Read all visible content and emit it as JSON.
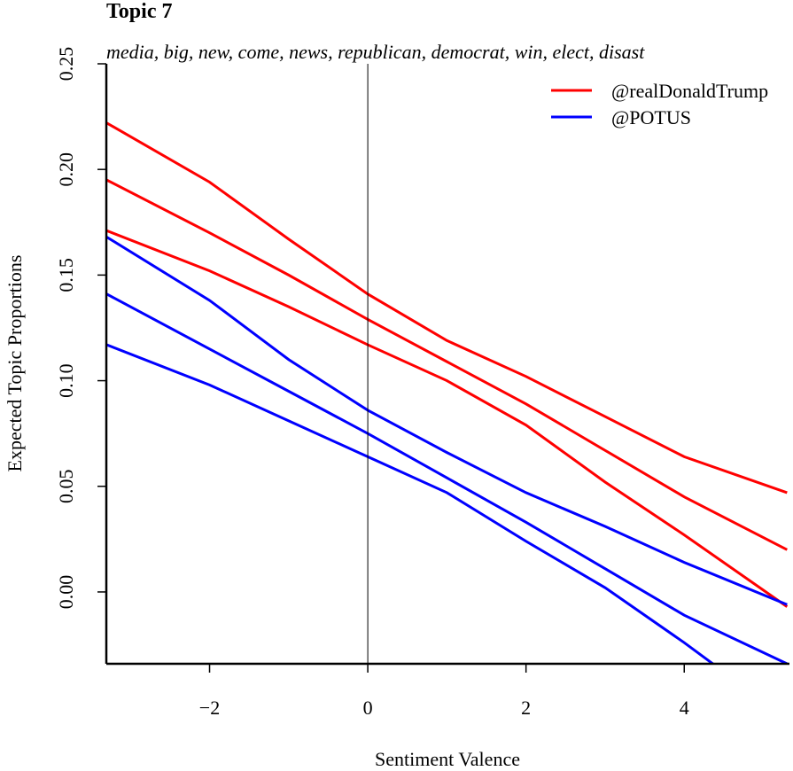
{
  "chart_data": {
    "type": "line",
    "title": "Topic 7",
    "subtitle": "media, big, new, come, news, republican, democrat, win, elect, disast",
    "xlabel": "Sentiment Valence",
    "ylabel": "Expected Topic Proportions",
    "x": [
      -3.3,
      -2,
      -1,
      0,
      1,
      2,
      3,
      4,
      5.3
    ],
    "series": [
      {
        "name": "@realDonaldTrump",
        "color": "#ff0000",
        "values": [
          0.195,
          0.17,
          0.15,
          0.129,
          0.109,
          0.089,
          0.067,
          0.045,
          0.02
        ],
        "upper": [
          0.222,
          0.194,
          0.167,
          0.141,
          0.119,
          0.102,
          0.083,
          0.064,
          0.047
        ],
        "lower": [
          0.171,
          0.152,
          0.135,
          0.117,
          0.1,
          0.079,
          0.052,
          0.027,
          -0.007
        ]
      },
      {
        "name": "@POTUS",
        "color": "#0000ff",
        "values": [
          0.141,
          0.115,
          0.095,
          0.075,
          0.054,
          0.033,
          0.011,
          -0.011,
          -0.034
        ],
        "upper": [
          0.168,
          0.138,
          0.11,
          0.086,
          0.066,
          0.047,
          0.031,
          0.014,
          -0.006
        ],
        "lower": [
          0.117,
          0.098,
          0.081,
          0.064,
          0.047,
          0.024,
          0.002,
          -0.024,
          -0.06
        ]
      }
    ],
    "vline": 0,
    "xlim": [
      -3.305,
      5.33
    ],
    "ylim": [
      -0.034,
      0.25
    ],
    "xticks": [
      {
        "value": -2,
        "label": "−2"
      },
      0,
      2,
      4
    ],
    "yticks": [
      {
        "value": 0,
        "label": "0.00"
      },
      {
        "value": 0.05,
        "label": "0.05"
      },
      {
        "value": 0.1,
        "label": "0.10"
      },
      {
        "value": 0.15,
        "label": "0.15"
      },
      {
        "value": 0.2,
        "label": "0.20"
      },
      {
        "value": 0.25,
        "label": "0.25"
      }
    ],
    "legend": "top-right"
  }
}
